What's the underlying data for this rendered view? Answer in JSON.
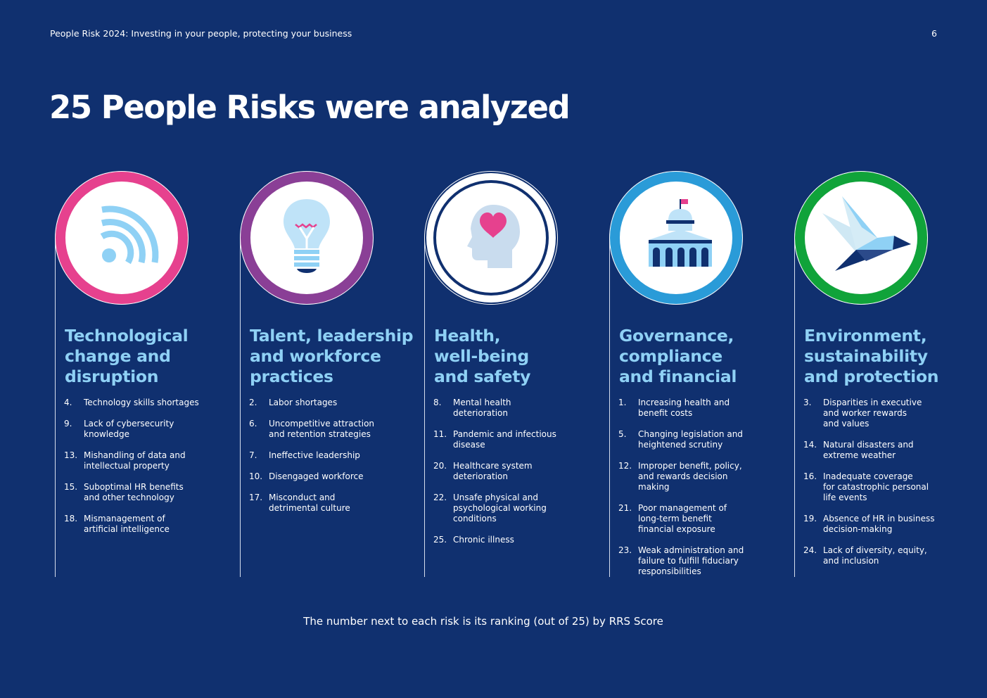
{
  "header": {
    "title": "People Risk 2024: Investing in your people, protecting your business",
    "page_number": "6"
  },
  "heading": "25 People Risks were analyzed",
  "categories": [
    {
      "title": "Technological\nchange and\ndisruption",
      "ring_color": "#e6418e",
      "icon": "wifi-icon",
      "items": [
        {
          "n": "4.",
          "t": "Technology skills shortages"
        },
        {
          "n": "9.",
          "t": "Lack of cybersecurity\nknowledge"
        },
        {
          "n": "13.",
          "t": "Mishandling of data and\nintellectual property"
        },
        {
          "n": "15.",
          "t": "Suboptimal HR benefits\nand other technology"
        },
        {
          "n": "18.",
          "t": "Mismanagement of\nartificial intelligence"
        }
      ]
    },
    {
      "title": "Talent, leadership\nand workforce\npractices",
      "ring_color": "#8a3f96",
      "icon": "lightbulb-icon",
      "items": [
        {
          "n": "2.",
          "t": "Labor shortages"
        },
        {
          "n": "6.",
          "t": "Uncompetitive attraction\nand retention strategies"
        },
        {
          "n": "7.",
          "t": "Ineffective leadership"
        },
        {
          "n": "10.",
          "t": "Disengaged workforce"
        },
        {
          "n": "17.",
          "t": "Misconduct and\ndetrimental culture"
        }
      ]
    },
    {
      "title": "Health,\nwell-being\nand safety",
      "ring_color": "#10306f",
      "icon": "head-heart-icon",
      "items": [
        {
          "n": "8.",
          "t": "Mental health\ndeterioration"
        },
        {
          "n": "11.",
          "t": "Pandemic and infectious\ndisease"
        },
        {
          "n": "20.",
          "t": "Healthcare system\ndeterioration"
        },
        {
          "n": "22.",
          "t": "Unsafe physical and\npsychological working\nconditions"
        },
        {
          "n": "25.",
          "t": "Chronic illness"
        }
      ]
    },
    {
      "title": "Governance,\ncompliance\nand financial",
      "ring_color": "#2a9bd8",
      "icon": "capitol-building-icon",
      "items": [
        {
          "n": "1.",
          "t": "Increasing health and\nbenefit costs"
        },
        {
          "n": "5.",
          "t": "Changing legislation and\nheightened scrutiny"
        },
        {
          "n": "12.",
          "t": "Improper benefit, policy,\nand rewards decision\nmaking"
        },
        {
          "n": "21.",
          "t": "Poor management of\nlong-term benefit\nfinancial exposure"
        },
        {
          "n": "23.",
          "t": "Weak administration and\nfailure to fulfill fiduciary\nresponsibilities"
        }
      ]
    },
    {
      "title": "Environment,\nsustainability\nand protection",
      "ring_color": "#10a33a",
      "icon": "origami-bird-icon",
      "items": [
        {
          "n": "3.",
          "t": "Disparities in executive\nand worker rewards\nand values"
        },
        {
          "n": "14.",
          "t": "Natural disasters and\nextreme weather"
        },
        {
          "n": "16.",
          "t": "Inadequate coverage\nfor catastrophic personal\nlife events"
        },
        {
          "n": "19.",
          "t": "Absence of HR in business\ndecision-making"
        },
        {
          "n": "24.",
          "t": "Lack of diversity, equity,\nand inclusion"
        }
      ]
    }
  ],
  "footnote": "The number next to each risk is its ranking (out of 25) by RRS Score"
}
